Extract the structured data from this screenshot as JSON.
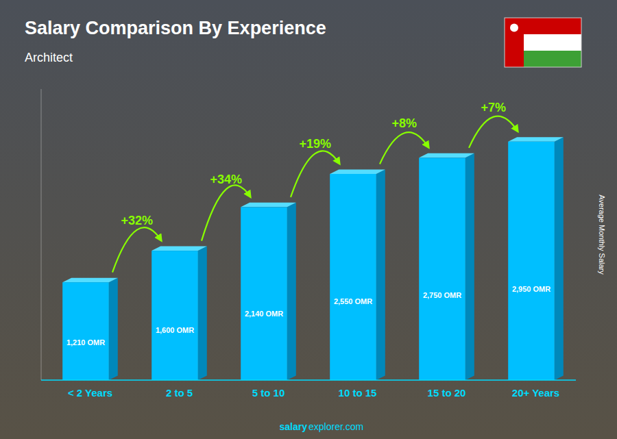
{
  "chart_data": {
    "type": "bar",
    "title": "Salary Comparison By Experience",
    "subtitle": "Architect",
    "categories": [
      "< 2 Years",
      "2 to 5",
      "5 to 10",
      "10 to 15",
      "15 to 20",
      "20+ Years"
    ],
    "values": [
      1210,
      1600,
      2140,
      2550,
      2750,
      2950
    ],
    "value_labels": [
      "1,210 OMR",
      "1,600 OMR",
      "2,140 OMR",
      "2,550 OMR",
      "2,750 OMR",
      "2,950 OMR"
    ],
    "data_labels": true,
    "color": "#00BFFF",
    "ylim": [
      0,
      3600
    ],
    "tick_labels": "x",
    "grid": false,
    "y_label": "Average Monthly Salary",
    "annotations": [
      "+32%",
      "+34%",
      "+19%",
      "+8%",
      "+7%"
    ],
    "footer": [
      "salary",
      "explorer.com"
    ]
  }
}
